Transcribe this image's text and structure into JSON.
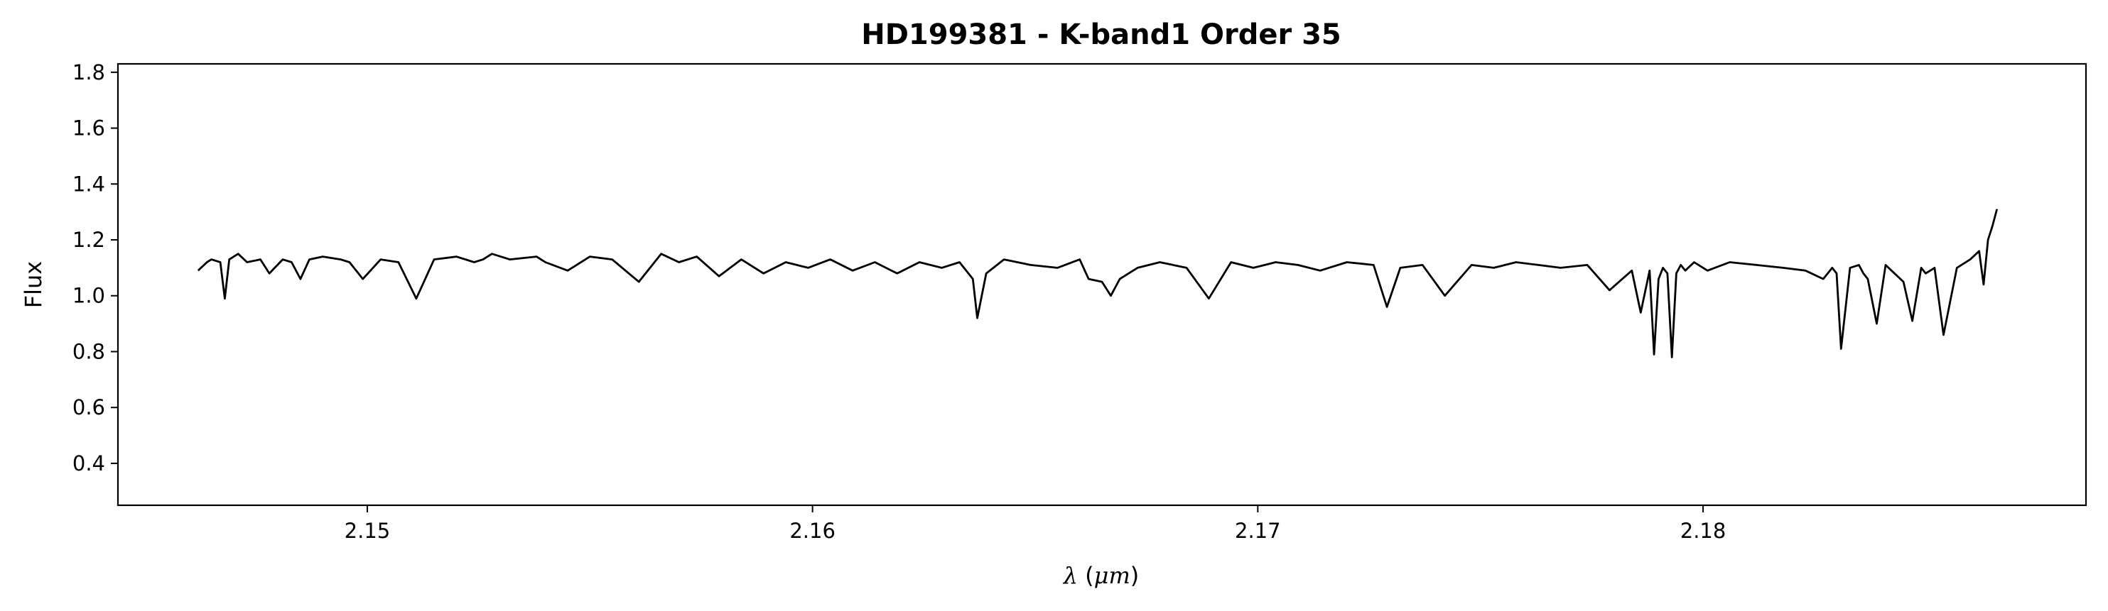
{
  "chart_data": {
    "type": "line",
    "title": "HD199381 - K-band1 Order 35",
    "xlabel_symbol": "λ",
    "xlabel_unit_open": " (",
    "xlabel_unit": "μm",
    "xlabel_unit_close": ")",
    "ylabel": "Flux",
    "xlim": [
      2.1444,
      2.1886
    ],
    "ylim": [
      0.25,
      1.83
    ],
    "xticks": [
      2.15,
      2.16,
      2.17,
      2.18
    ],
    "xtick_labels": [
      "2.15",
      "2.16",
      "2.17",
      "2.18"
    ],
    "yticks": [
      0.4,
      0.6,
      0.8,
      1.0,
      1.2,
      1.4,
      1.6,
      1.8
    ],
    "ytick_labels": [
      "0.4",
      "0.6",
      "0.8",
      "1.0",
      "1.2",
      "1.4",
      "1.6",
      "1.8"
    ],
    "grid": false,
    "line_color": "#000000",
    "series": [
      {
        "x": [
          2.1462,
          2.1464,
          2.1465,
          2.1467,
          2.1468,
          2.1469,
          2.1471,
          2.1473,
          2.1476,
          2.1478,
          2.1481,
          2.1483,
          2.1485,
          2.1487,
          2.149,
          2.1494,
          2.1496,
          2.1499,
          2.1503,
          2.1507,
          2.1511,
          2.1515,
          2.152,
          2.1524,
          2.1526,
          2.1528,
          2.1532,
          2.1538,
          2.154,
          2.1545,
          2.155,
          2.1555,
          2.1561,
          2.1566,
          2.157,
          2.1574,
          2.1579,
          2.1584,
          2.1589,
          2.1594,
          2.1599,
          2.1604,
          2.1609,
          2.1614,
          2.1619,
          2.1624,
          2.1629,
          2.1633,
          2.1636,
          2.1637,
          2.1639,
          2.1643,
          2.1649,
          2.1655,
          2.166,
          2.1662,
          2.1665,
          2.1667,
          2.1669,
          2.1673,
          2.1678,
          2.1684,
          2.1689,
          2.1694,
          2.1699,
          2.1704,
          2.1709,
          2.1714,
          2.172,
          2.1726,
          2.1729,
          2.1732,
          2.1737,
          2.1742,
          2.1748,
          2.1753,
          2.1758,
          2.1763,
          2.1768,
          2.1774,
          2.1779,
          2.1784,
          2.1786,
          2.1788,
          2.1789,
          2.179,
          2.1791,
          2.1792,
          2.1793,
          2.1794,
          2.1795,
          2.1796,
          2.1798,
          2.1801,
          2.1806,
          2.1812,
          2.1818,
          2.1823,
          2.1827,
          2.1829,
          2.183,
          2.1831,
          2.1833,
          2.1835,
          2.1836,
          2.1837,
          2.1839,
          2.1841,
          2.1843,
          2.1845,
          2.1847,
          2.1849,
          2.185,
          2.1852,
          2.1854,
          2.1857,
          2.186,
          2.1862,
          2.1863,
          2.1864,
          2.1865,
          2.1866
        ],
        "y": [
          1.09,
          1.12,
          1.13,
          1.12,
          0.99,
          1.13,
          1.15,
          1.12,
          1.13,
          1.08,
          1.13,
          1.12,
          1.06,
          1.13,
          1.14,
          1.13,
          1.12,
          1.06,
          1.13,
          1.12,
          0.99,
          1.13,
          1.14,
          1.12,
          1.13,
          1.15,
          1.13,
          1.14,
          1.12,
          1.09,
          1.14,
          1.13,
          1.05,
          1.15,
          1.12,
          1.14,
          1.07,
          1.13,
          1.08,
          1.12,
          1.1,
          1.13,
          1.09,
          1.12,
          1.08,
          1.12,
          1.1,
          1.12,
          1.06,
          0.92,
          1.08,
          1.13,
          1.11,
          1.1,
          1.13,
          1.06,
          1.05,
          1.0,
          1.06,
          1.1,
          1.12,
          1.1,
          0.99,
          1.12,
          1.1,
          1.12,
          1.11,
          1.09,
          1.12,
          1.11,
          0.96,
          1.1,
          1.11,
          1.0,
          1.11,
          1.1,
          1.12,
          1.11,
          1.1,
          1.11,
          1.02,
          1.09,
          0.94,
          1.09,
          0.79,
          1.06,
          1.1,
          1.08,
          0.78,
          1.08,
          1.11,
          1.09,
          1.12,
          1.09,
          1.12,
          1.11,
          1.1,
          1.09,
          1.06,
          1.1,
          1.08,
          0.81,
          1.1,
          1.11,
          1.08,
          1.06,
          0.9,
          1.11,
          1.08,
          1.05,
          0.91,
          1.1,
          1.08,
          1.1,
          0.86,
          1.1,
          1.13,
          1.16,
          1.04,
          1.2,
          1.25,
          1.31
        ]
      }
    ]
  }
}
